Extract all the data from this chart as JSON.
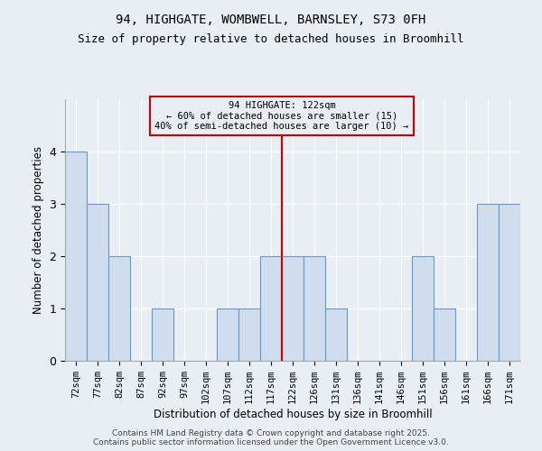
{
  "title1": "94, HIGHGATE, WOMBWELL, BARNSLEY, S73 0FH",
  "title2": "Size of property relative to detached houses in Broomhill",
  "xlabel": "Distribution of detached houses by size in Broomhill",
  "ylabel": "Number of detached properties",
  "categories": [
    "72sqm",
    "77sqm",
    "82sqm",
    "87sqm",
    "92sqm",
    "97sqm",
    "102sqm",
    "107sqm",
    "112sqm",
    "117sqm",
    "122sqm",
    "126sqm",
    "131sqm",
    "136sqm",
    "141sqm",
    "146sqm",
    "151sqm",
    "156sqm",
    "161sqm",
    "166sqm",
    "171sqm"
  ],
  "values": [
    4,
    3,
    2,
    0,
    1,
    0,
    0,
    1,
    1,
    2,
    2,
    2,
    1,
    0,
    0,
    0,
    2,
    1,
    0,
    3,
    3
  ],
  "bar_color": "#cfdded",
  "bar_edgecolor": "#6699cc",
  "marker_index": 10,
  "marker_color": "#cc0000",
  "annotation_text": "94 HIGHGATE: 122sqm\n← 60% of detached houses are smaller (15)\n40% of semi-detached houses are larger (10) →",
  "annotation_box_edgecolor": "#cc0000",
  "ylim": [
    0,
    5
  ],
  "yticks": [
    0,
    1,
    2,
    3,
    4
  ],
  "background_color": "#e8eef4",
  "grid_color": "#ffffff",
  "footer1": "Contains HM Land Registry data © Crown copyright and database right 2025.",
  "footer2": "Contains public sector information licensed under the Open Government Licence v3.0."
}
